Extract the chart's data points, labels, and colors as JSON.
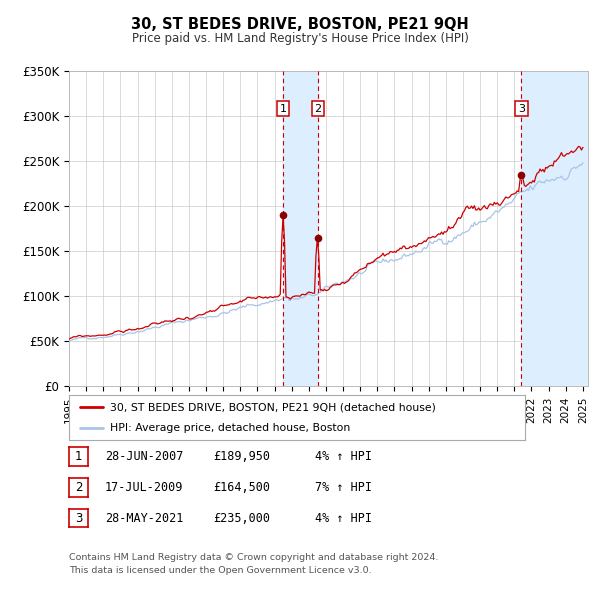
{
  "title": "30, ST BEDES DRIVE, BOSTON, PE21 9QH",
  "subtitle": "Price paid vs. HM Land Registry's House Price Index (HPI)",
  "ylim": [
    0,
    350000
  ],
  "yticks": [
    0,
    50000,
    100000,
    150000,
    200000,
    250000,
    300000,
    350000
  ],
  "ytick_labels": [
    "£0",
    "£50K",
    "£100K",
    "£150K",
    "£200K",
    "£250K",
    "£300K",
    "£350K"
  ],
  "hpi_color": "#aac4e8",
  "price_color": "#cc0000",
  "marker_color": "#8b0000",
  "vspan_color": "#ddeeff",
  "vline_color": "#cc0000",
  "grid_color": "#cccccc",
  "bg_color": "#ffffff",
  "transactions": [
    {
      "date_num": 2007.49,
      "price": 189950,
      "label": "1"
    },
    {
      "date_num": 2009.54,
      "price": 164500,
      "label": "2"
    },
    {
      "date_num": 2021.41,
      "price": 235000,
      "label": "3"
    }
  ],
  "legend_price_label": "30, ST BEDES DRIVE, BOSTON, PE21 9QH (detached house)",
  "legend_hpi_label": "HPI: Average price, detached house, Boston",
  "table_rows": [
    {
      "num": "1",
      "date": "28-JUN-2007",
      "price": "£189,950",
      "change": "4% ↑ HPI"
    },
    {
      "num": "2",
      "date": "17-JUL-2009",
      "price": "£164,500",
      "change": "7% ↑ HPI"
    },
    {
      "num": "3",
      "date": "28-MAY-2021",
      "price": "£235,000",
      "change": "4% ↑ HPI"
    }
  ],
  "footnote1": "Contains HM Land Registry data © Crown copyright and database right 2024.",
  "footnote2": "This data is licensed under the Open Government Licence v3.0."
}
